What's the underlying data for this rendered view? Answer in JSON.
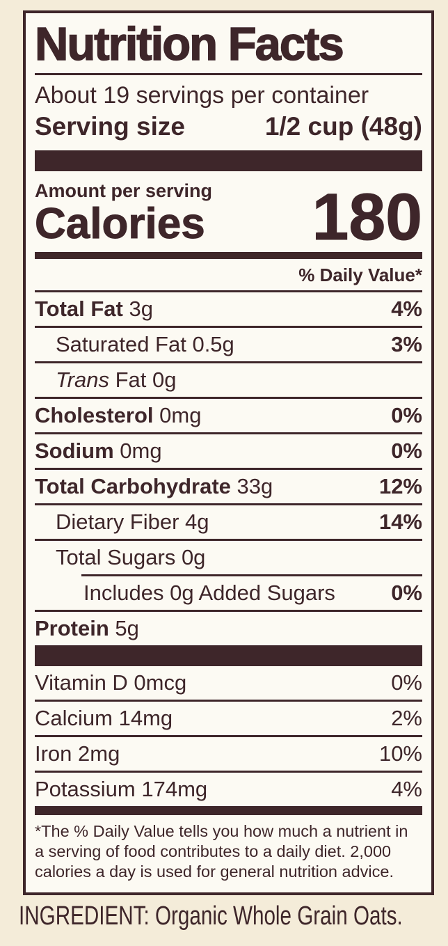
{
  "colors": {
    "background": "#F4ECD9",
    "panel_background": "#FCFAF3",
    "ink": "#3E262A"
  },
  "label": {
    "title": "Nutrition Facts",
    "servings_per_container": "About 19 servings per container",
    "serving_size_label": "Serving size",
    "serving_size_value": "1/2 cup (48g)",
    "amount_per_serving": "Amount per serving",
    "calories_label": "Calories",
    "calories_value": "180",
    "daily_value_header": "% Daily Value*",
    "nutrients": [
      {
        "name": "Total Fat",
        "rest": " 3g",
        "dv": "4%"
      },
      {
        "name": "Saturated Fat",
        "rest": " 0.5g",
        "dv": "3%"
      },
      {
        "name": "Trans",
        "rest": " Fat 0g",
        "dv": ""
      },
      {
        "name": "Cholesterol",
        "rest": " 0mg",
        "dv": "0%"
      },
      {
        "name": "Sodium",
        "rest": " 0mg",
        "dv": "0%"
      },
      {
        "name": "Total Carbohydrate",
        "rest": " 33g",
        "dv": "12%"
      },
      {
        "name": "Dietary Fiber",
        "rest": " 4g",
        "dv": "14%"
      },
      {
        "name": "Total Sugars",
        "rest": " 0g",
        "dv": ""
      },
      {
        "name": "Includes 0g Added Sugars",
        "rest": "",
        "dv": "0%"
      },
      {
        "name": "Protein",
        "rest": " 5g",
        "dv": ""
      }
    ],
    "vitamins": [
      {
        "name": "Vitamin D",
        "rest": " 0mcg",
        "dv": "0%"
      },
      {
        "name": "Calcium",
        "rest": " 14mg",
        "dv": "2%"
      },
      {
        "name": "Iron",
        "rest": " 2mg",
        "dv": "10%"
      },
      {
        "name": "Potassium",
        "rest": " 174mg",
        "dv": "4%"
      }
    ],
    "footnote_lines": [
      "*The % Daily Value tells you how much a nutrient in",
      "a serving of food contributes to a daily diet. 2,000",
      "calories a day is used for general nutrition advice."
    ]
  },
  "ingredient_statement": "INGREDIENT: Organic Whole Grain Oats."
}
